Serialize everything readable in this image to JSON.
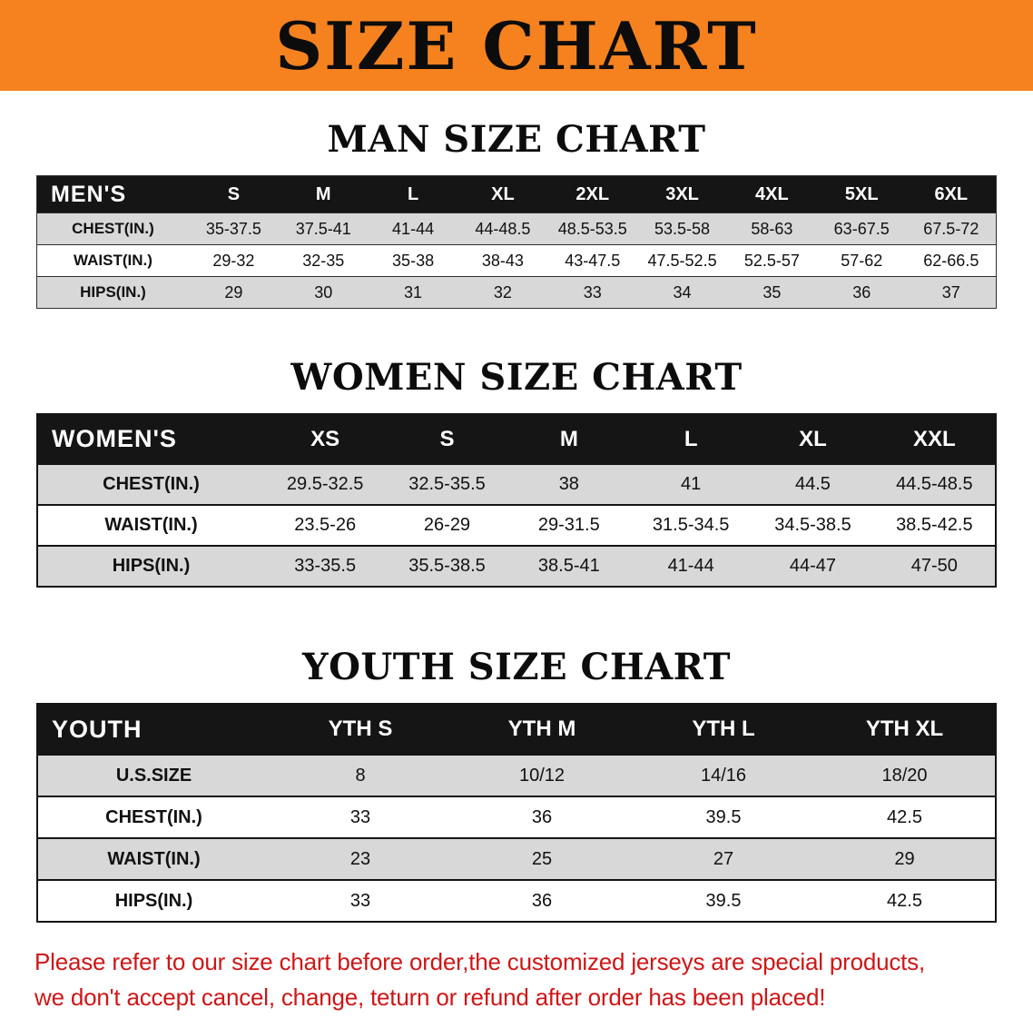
{
  "banner": {
    "title": "SIZE CHART",
    "bg_color": "#f5821f"
  },
  "sections": {
    "men": {
      "heading": "MAN SIZE CHART",
      "table": {
        "header": [
          "MEN'S",
          "S",
          "M",
          "L",
          "XL",
          "2XL",
          "3XL",
          "4XL",
          "5XL",
          "6XL"
        ],
        "rows": [
          [
            "CHEST(IN.)",
            "35-37.5",
            "37.5-41",
            "41-44",
            "44-48.5",
            "48.5-53.5",
            "53.5-58",
            "58-63",
            "63-67.5",
            "67.5-72"
          ],
          [
            "WAIST(IN.)",
            "29-32",
            "32-35",
            "35-38",
            "38-43",
            "43-47.5",
            "47.5-52.5",
            "52.5-57",
            "57-62",
            "62-66.5"
          ],
          [
            "HIPS(IN.)",
            "29",
            "30",
            "31",
            "32",
            "33",
            "34",
            "35",
            "36",
            "37"
          ]
        ]
      }
    },
    "women": {
      "heading": "WOMEN SIZE CHART",
      "table": {
        "header": [
          "WOMEN'S",
          "XS",
          "S",
          "M",
          "L",
          "XL",
          "XXL"
        ],
        "rows": [
          [
            "CHEST(IN.)",
            "29.5-32.5",
            "32.5-35.5",
            "38",
            "41",
            "44.5",
            "44.5-48.5"
          ],
          [
            "WAIST(IN.)",
            "23.5-26",
            "26-29",
            "29-31.5",
            "31.5-34.5",
            "34.5-38.5",
            "38.5-42.5"
          ],
          [
            "HIPS(IN.)",
            "33-35.5",
            "35.5-38.5",
            "38.5-41",
            "41-44",
            "44-47",
            "47-50"
          ]
        ]
      }
    },
    "youth": {
      "heading": "YOUTH SIZE CHART",
      "table": {
        "header": [
          "YOUTH",
          "YTH S",
          "YTH M",
          "YTH L",
          "YTH XL"
        ],
        "rows": [
          [
            "U.S.SIZE",
            "8",
            "10/12",
            "14/16",
            "18/20"
          ],
          [
            "CHEST(IN.)",
            "33",
            "36",
            "39.5",
            "42.5"
          ],
          [
            "WAIST(IN.)",
            "23",
            "25",
            "27",
            "29"
          ],
          [
            "HIPS(IN.)",
            "33",
            "36",
            "39.5",
            "42.5"
          ]
        ]
      }
    }
  },
  "footer": {
    "line1": "Please refer to our size chart before order,the customized jerseys are special products,",
    "line2": "we don't accept cancel, change, teturn or refund after order has been placed!",
    "text_color": "#cf1616"
  }
}
